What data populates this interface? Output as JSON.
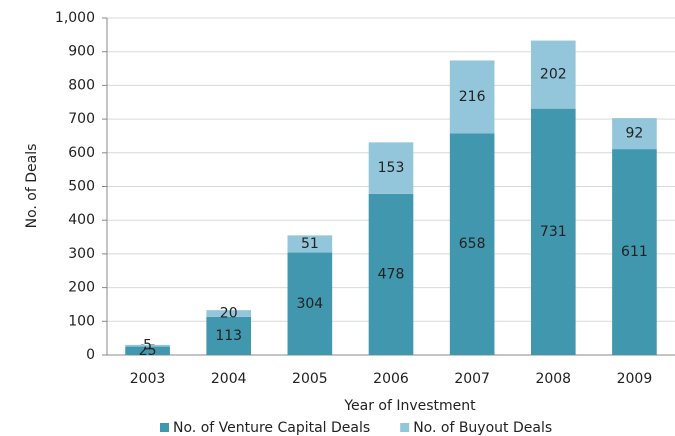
{
  "chart_data": {
    "type": "stacked_bar",
    "categories": [
      "2003",
      "2004",
      "2005",
      "2006",
      "2007",
      "2008",
      "2009"
    ],
    "series": [
      {
        "name": "No. of Venture Capital Deals",
        "color": "#4197ad",
        "values": [
          25,
          113,
          304,
          478,
          658,
          731,
          611
        ]
      },
      {
        "name": "No. of Buyout Deals",
        "color": "#93c6da",
        "values": [
          5,
          20,
          51,
          153,
          216,
          202,
          92
        ]
      }
    ],
    "ylim": [
      0,
      1000
    ],
    "yticks": [
      0,
      100,
      200,
      300,
      400,
      500,
      600,
      700,
      800,
      900,
      {
        "value": 1000,
        "label": "1,000"
      }
    ],
    "xlabel": "Year of Investment",
    "ylabel": "No. of Deals",
    "grid": true,
    "legend": "bottom"
  }
}
